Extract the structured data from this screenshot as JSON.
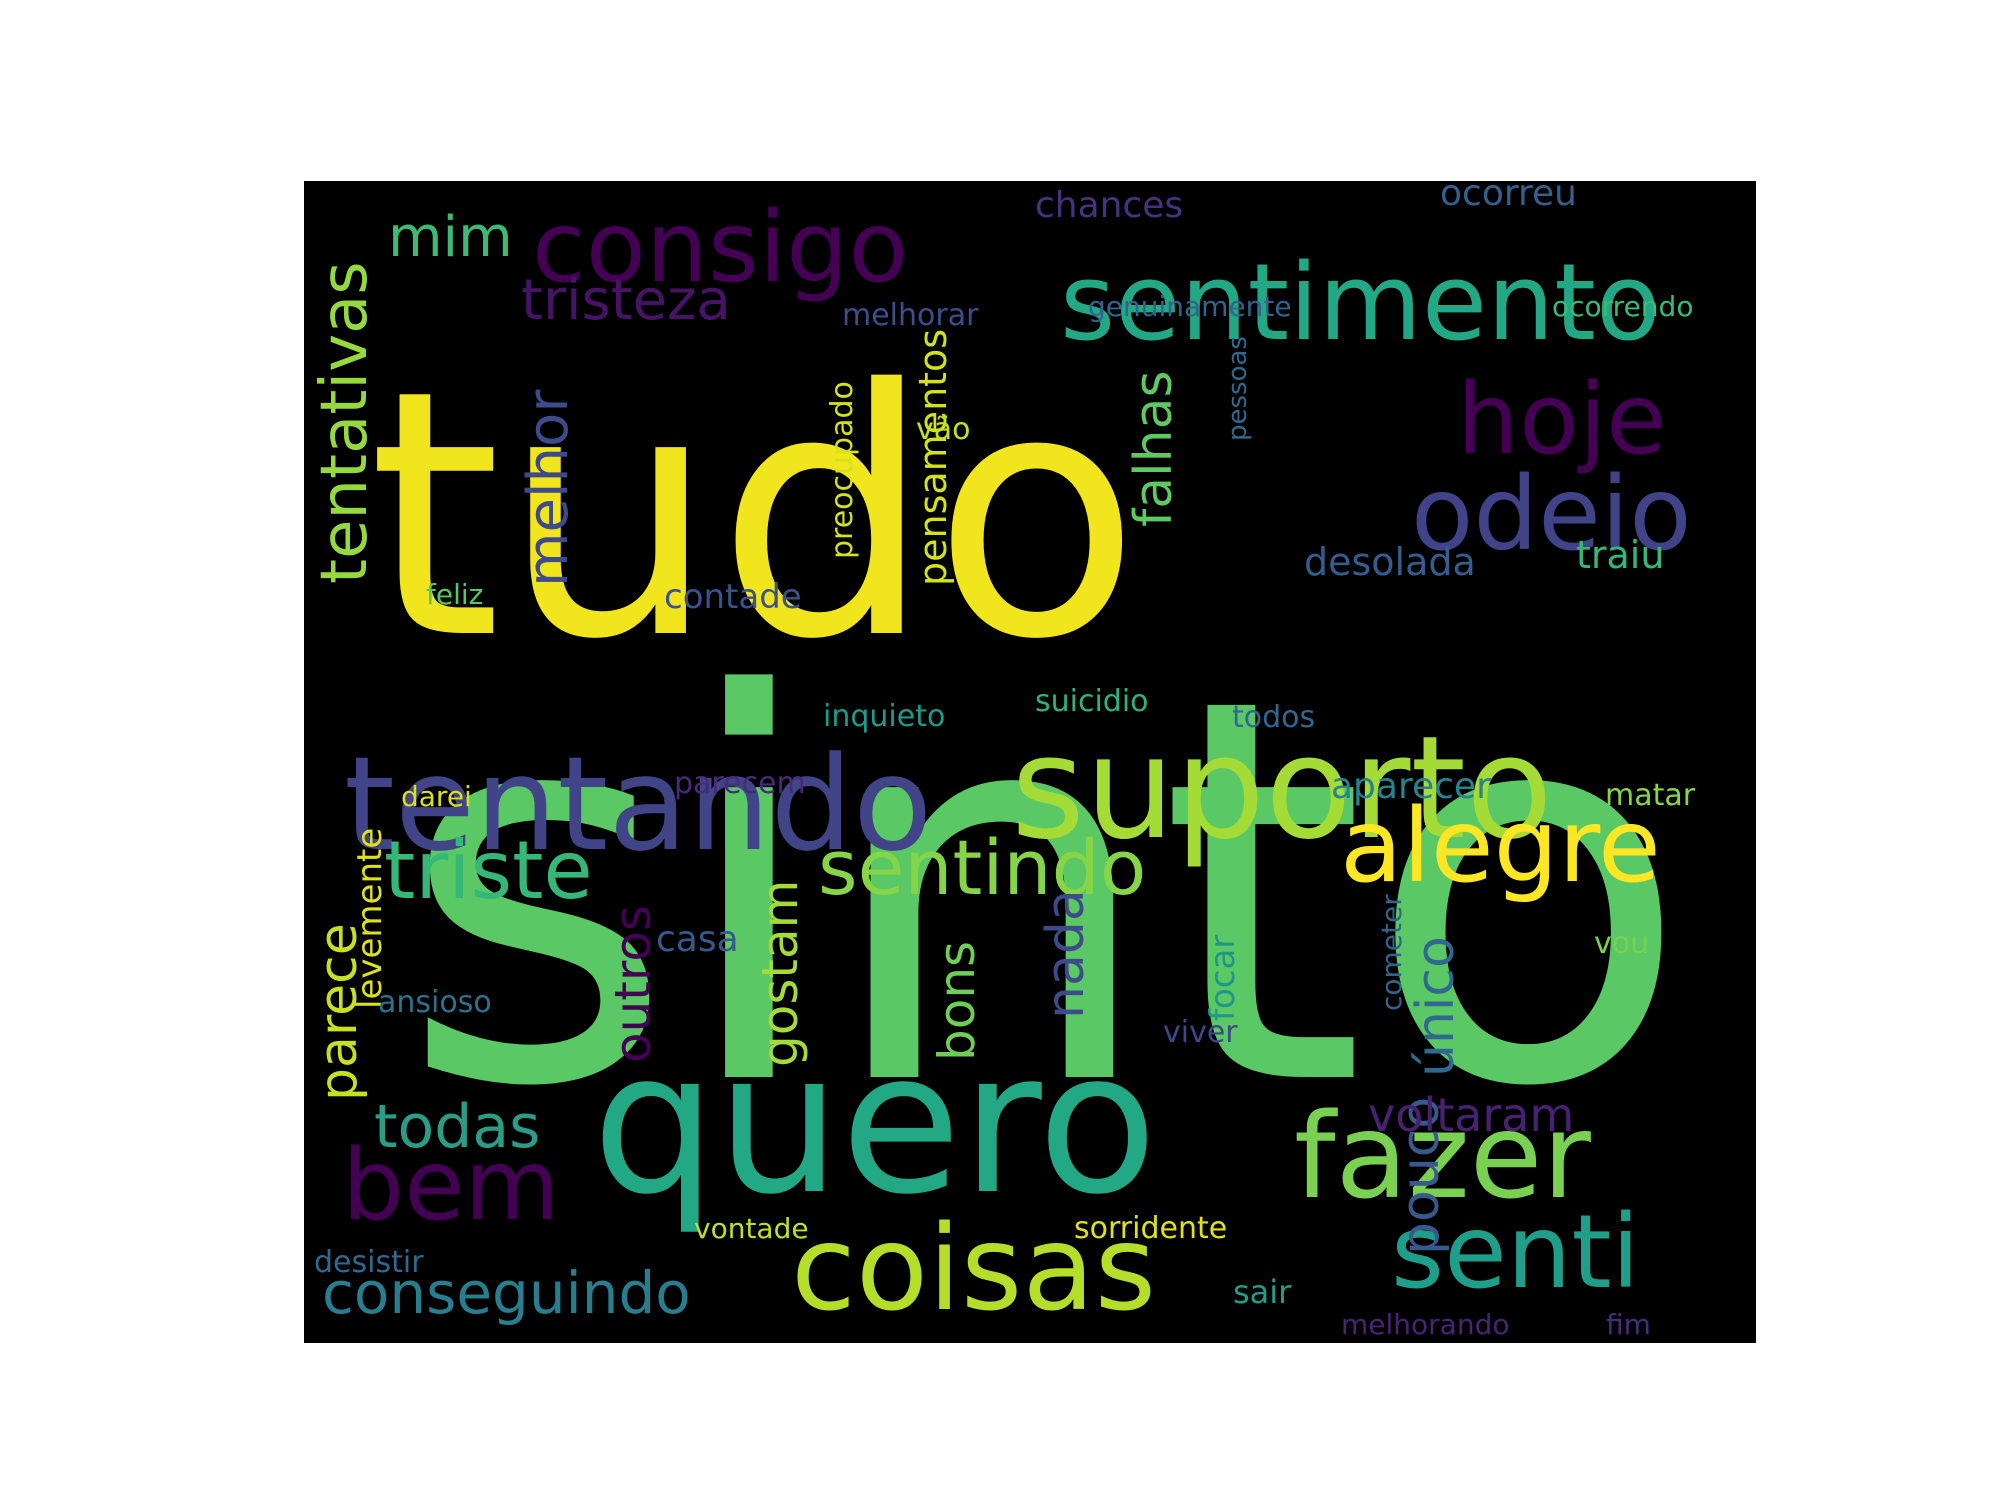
{
  "chart_data": {
    "type": "wordcloud",
    "title": "",
    "background": "#000000",
    "colormap": "viridis",
    "words": [
      {
        "text": "sinto",
        "rank": 1,
        "color": "#5ac864"
      },
      {
        "text": "tudo",
        "rank": 2,
        "color": "#f1e51d"
      },
      {
        "text": "quero",
        "rank": 3,
        "color": "#22a884"
      },
      {
        "text": "suporto",
        "rank": 4,
        "color": "#a5db36"
      },
      {
        "text": "tentando",
        "rank": 5,
        "color": "#414487"
      },
      {
        "text": "fazer",
        "rank": 6,
        "color": "#7ad151"
      },
      {
        "text": "coisas",
        "rank": 7,
        "color": "#b5de2b"
      },
      {
        "text": "sentimento",
        "rank": 8,
        "color": "#22a884"
      },
      {
        "text": "consigo",
        "rank": 9,
        "color": "#440154"
      },
      {
        "text": "odeio",
        "rank": 10,
        "color": "#404387"
      },
      {
        "text": "hoje",
        "rank": 11,
        "color": "#440154"
      },
      {
        "text": "alegre",
        "rank": 12,
        "color": "#fde725"
      },
      {
        "text": "senti",
        "rank": 13,
        "color": "#1f9e89"
      },
      {
        "text": "bem",
        "rank": 14,
        "color": "#440154"
      },
      {
        "text": "triste",
        "rank": 15,
        "color": "#35b779"
      },
      {
        "text": "sentindo",
        "rank": 16,
        "color": "#86d549"
      },
      {
        "text": "tentativas",
        "rank": 17,
        "color": "#95d840"
      },
      {
        "text": "conseguindo",
        "rank": 18,
        "color": "#287d8e"
      },
      {
        "text": "todas",
        "rank": 19,
        "color": "#2a9d87"
      },
      {
        "text": "tristeza",
        "rank": 20,
        "color": "#471365"
      },
      {
        "text": "melhor",
        "rank": 21,
        "color": "#3e4a89"
      },
      {
        "text": "mim",
        "rank": 22,
        "color": "#3bbb75"
      },
      {
        "text": "falhas",
        "rank": 23,
        "color": "#5ec962"
      },
      {
        "text": "pouco",
        "rank": 24,
        "color": "#38598c"
      },
      {
        "text": "voltaram",
        "rank": 25,
        "color": "#482173"
      },
      {
        "text": "único",
        "rank": 26,
        "color": "#31688e"
      },
      {
        "text": "parece",
        "rank": 27,
        "color": "#c8e020"
      },
      {
        "text": "outros",
        "rank": 28,
        "color": "#440154"
      },
      {
        "text": "gostam",
        "rank": 29,
        "color": "#a5db36"
      },
      {
        "text": "nada",
        "rank": 30,
        "color": "#3e4a89"
      },
      {
        "text": "bons",
        "rank": 31,
        "color": "#6ece58"
      },
      {
        "text": "pensamentos",
        "rank": 32,
        "color": "#d2e21b"
      },
      {
        "text": "desolada",
        "rank": 33,
        "color": "#365c8d"
      },
      {
        "text": "traiu",
        "rank": 34,
        "color": "#35b779"
      },
      {
        "text": "contade",
        "rank": 35,
        "color": "#3b528b"
      },
      {
        "text": "aparecer",
        "rank": 36,
        "color": "#25848e"
      },
      {
        "text": "levemente",
        "rank": 37,
        "color": "#dde318"
      },
      {
        "text": "chances",
        "rank": 38,
        "color": "#46327e"
      },
      {
        "text": "ocorreu",
        "rank": 39,
        "color": "#355f8d"
      },
      {
        "text": "melhorar",
        "rank": 40,
        "color": "#3d4e8a"
      },
      {
        "text": "genuinamente",
        "rank": 41,
        "color": "#33638d"
      },
      {
        "text": "ocorrendo",
        "rank": 42,
        "color": "#3aba76"
      },
      {
        "text": "pessoas",
        "rank": 43,
        "color": "#30698e"
      },
      {
        "text": "preocupado",
        "rank": 44,
        "color": "#d5e21a"
      },
      {
        "text": "vão",
        "rank": 45,
        "color": "#c2df23"
      },
      {
        "text": "feliz",
        "rank": 46,
        "color": "#56c667"
      },
      {
        "text": "inquieto",
        "rank": 47,
        "color": "#1f9a8a"
      },
      {
        "text": "suicidio",
        "rank": 48,
        "color": "#2eb37c"
      },
      {
        "text": "todos",
        "rank": 49,
        "color": "#31678e"
      },
      {
        "text": "darei",
        "rank": 50,
        "color": "#d8e219"
      },
      {
        "text": "parecem",
        "rank": 51,
        "color": "#472a7a"
      },
      {
        "text": "matar",
        "rank": 52,
        "color": "#86d549"
      },
      {
        "text": "casa",
        "rank": 53,
        "color": "#38598c"
      },
      {
        "text": "focar",
        "rank": 54,
        "color": "#1f968b"
      },
      {
        "text": "cometer",
        "rank": 55,
        "color": "#33638d"
      },
      {
        "text": "vou",
        "rank": 56,
        "color": "#7ad151"
      },
      {
        "text": "ansioso",
        "rank": 57,
        "color": "#2c728e"
      },
      {
        "text": "viver",
        "rank": 58,
        "color": "#3e4989"
      },
      {
        "text": "vontade",
        "rank": 59,
        "color": "#c0df25"
      },
      {
        "text": "sorridente",
        "rank": 60,
        "color": "#dde318"
      },
      {
        "text": "desistir",
        "rank": 61,
        "color": "#31688e"
      },
      {
        "text": "sair",
        "rank": 62,
        "color": "#1f9e89"
      },
      {
        "text": "melhorando",
        "rank": 63,
        "color": "#482475"
      },
      {
        "text": "fim",
        "rank": 64,
        "color": "#472d7b"
      }
    ]
  }
}
